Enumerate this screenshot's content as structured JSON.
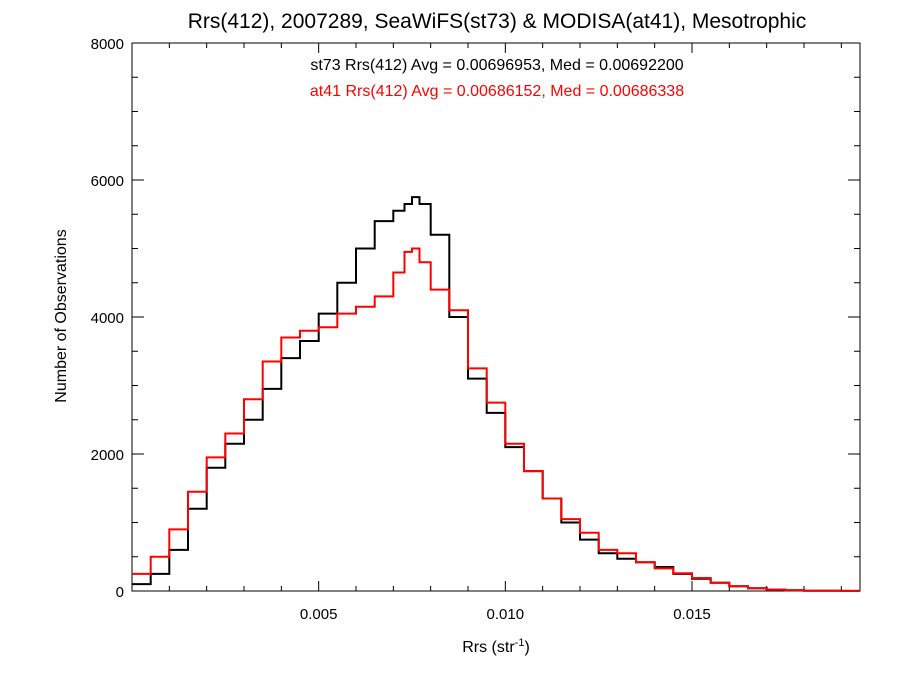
{
  "chart_data": {
    "type": "line",
    "title": "Rrs(412), 2007289, SeaWiFS(st73) & MODISA(at41), Mesotrophic",
    "xlabel": {
      "base": "Rrs (str",
      "sup": "-1",
      "end": ")"
    },
    "ylabel": "Number of Observations",
    "xlim": [
      0.0,
      0.0195
    ],
    "ylim": [
      0,
      8000
    ],
    "xticks": [
      {
        "value": 0.005,
        "label": "0.005"
      },
      {
        "value": 0.01,
        "label": "0.010"
      },
      {
        "value": 0.015,
        "label": "0.015"
      }
    ],
    "yticks": [
      {
        "value": 0,
        "label": "0"
      },
      {
        "value": 2000,
        "label": "2000"
      },
      {
        "value": 4000,
        "label": "4000"
      },
      {
        "value": 6000,
        "label": "6000"
      },
      {
        "value": 8000,
        "label": "8000"
      }
    ],
    "annotations": [
      {
        "text": "st73 Rrs(412) Avg = 0.00696953, Med = 0.00692200",
        "color": "#000000"
      },
      {
        "text": "at41 Rrs(412) Avg = 0.00686152, Med = 0.00686338",
        "color": "#ff0000"
      }
    ],
    "series": [
      {
        "color": "#000000",
        "x": [
          0.0,
          0.0005,
          0.001,
          0.0015,
          0.002,
          0.0025,
          0.003,
          0.0035,
          0.004,
          0.0045,
          0.005,
          0.0055,
          0.006,
          0.0065,
          0.007,
          0.0073,
          0.0075,
          0.0077,
          0.008,
          0.0085,
          0.009,
          0.0095,
          0.01,
          0.0105,
          0.011,
          0.0115,
          0.012,
          0.0125,
          0.013,
          0.0135,
          0.014,
          0.0145,
          0.015,
          0.0155,
          0.016,
          0.0165,
          0.017,
          0.0175,
          0.018,
          0.0185,
          0.019,
          0.0195
        ],
        "y": [
          100,
          250,
          600,
          1200,
          1800,
          2150,
          2500,
          2950,
          3400,
          3650,
          4050,
          4500,
          5000,
          5400,
          5550,
          5650,
          5750,
          5650,
          5200,
          4000,
          3100,
          2600,
          2100,
          1750,
          1350,
          1000,
          750,
          550,
          470,
          420,
          350,
          250,
          180,
          120,
          70,
          40,
          20,
          10,
          5,
          3,
          2,
          1
        ]
      },
      {
        "color": "#ff0000",
        "x": [
          0.0,
          0.0005,
          0.001,
          0.0015,
          0.002,
          0.0025,
          0.003,
          0.0035,
          0.004,
          0.0045,
          0.005,
          0.0055,
          0.006,
          0.0065,
          0.007,
          0.0073,
          0.0075,
          0.0077,
          0.008,
          0.0085,
          0.009,
          0.0095,
          0.01,
          0.0105,
          0.011,
          0.0115,
          0.012,
          0.0125,
          0.013,
          0.0135,
          0.014,
          0.0145,
          0.015,
          0.0155,
          0.016,
          0.0165,
          0.017,
          0.0175,
          0.018,
          0.0185,
          0.019,
          0.0195
        ],
        "y": [
          250,
          500,
          900,
          1450,
          1950,
          2300,
          2800,
          3350,
          3700,
          3800,
          3850,
          4050,
          4150,
          4300,
          4650,
          4950,
          5000,
          4800,
          4400,
          4100,
          3250,
          2750,
          2150,
          1750,
          1350,
          1050,
          850,
          600,
          550,
          420,
          330,
          260,
          190,
          120,
          70,
          40,
          20,
          10,
          5,
          3,
          2,
          1
        ]
      }
    ]
  }
}
